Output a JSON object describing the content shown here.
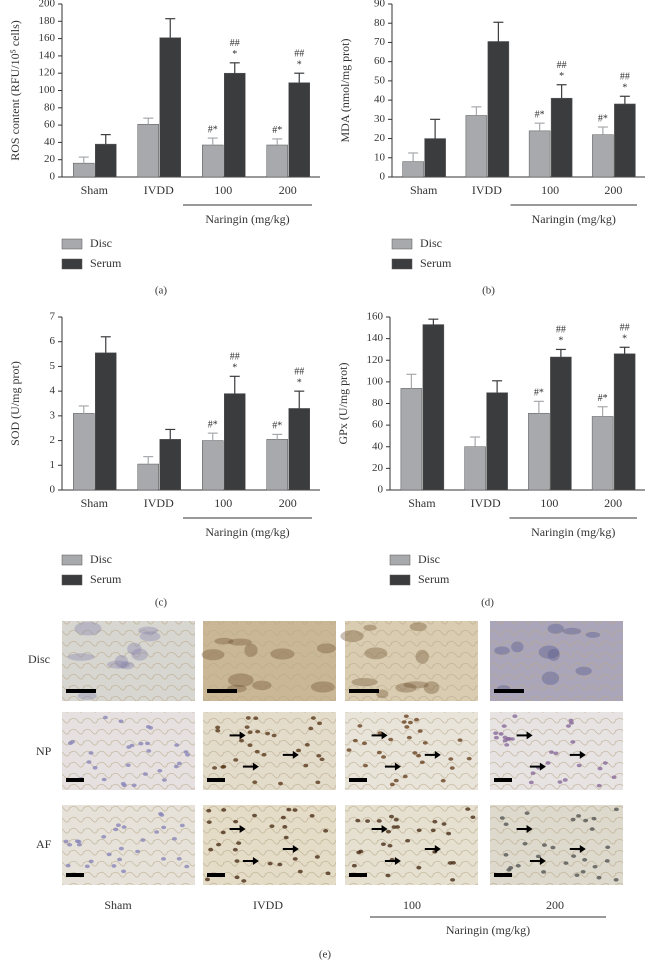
{
  "chart_data": [
    {
      "type": "bar",
      "panel_label": "(a)",
      "y_label": "ROS content (RFU/10⁵ cells)",
      "group_label": "Naringin (mg/kg)",
      "categories": [
        "Sham",
        "IVDD",
        "100",
        "200"
      ],
      "ylim": [
        0,
        200
      ],
      "yticks": [
        0,
        20,
        40,
        60,
        80,
        100,
        120,
        140,
        160,
        180,
        200
      ],
      "series": [
        {
          "name": "Disc",
          "color": "#a7a9ac",
          "values": [
            16,
            61,
            37,
            37
          ],
          "errors": [
            7,
            7,
            8,
            7
          ],
          "sig_labels": [
            null,
            null,
            [
              "#*"
            ],
            [
              "#*"
            ]
          ]
        },
        {
          "name": "Serum",
          "color": "#3b3c3e",
          "values": [
            38,
            161,
            120,
            109
          ],
          "errors": [
            11,
            22,
            12,
            11
          ],
          "sig_labels": [
            null,
            null,
            [
              "##",
              "*"
            ],
            [
              "##",
              "*"
            ]
          ]
        }
      ]
    },
    {
      "type": "bar",
      "panel_label": "(b)",
      "y_label": "MDA (nmol/mg prot)",
      "group_label": "Naringin (mg/kg)",
      "categories": [
        "Sham",
        "IVDD",
        "100",
        "200"
      ],
      "ylim": [
        0,
        90
      ],
      "yticks": [
        0,
        10,
        20,
        30,
        40,
        50,
        60,
        70,
        80,
        90
      ],
      "series": [
        {
          "name": "Disc",
          "color": "#a7a9ac",
          "values": [
            8,
            32,
            24,
            22
          ],
          "errors": [
            4.5,
            4.5,
            4,
            4
          ],
          "sig_labels": [
            null,
            null,
            [
              "#*"
            ],
            [
              "#*"
            ]
          ]
        },
        {
          "name": "Serum",
          "color": "#3b3c3e",
          "values": [
            20,
            70.5,
            41,
            38
          ],
          "errors": [
            10,
            10,
            7,
            4
          ],
          "sig_labels": [
            null,
            null,
            [
              "##",
              "*"
            ],
            [
              "##",
              "*"
            ]
          ]
        }
      ]
    },
    {
      "type": "bar",
      "panel_label": "(c)",
      "y_label": "SOD (U/mg prot)",
      "group_label": "Naringin (mg/kg)",
      "categories": [
        "Sham",
        "IVDD",
        "100",
        "200"
      ],
      "ylim": [
        0,
        7
      ],
      "yticks": [
        0,
        1,
        2,
        3,
        4,
        5,
        6,
        7
      ],
      "series": [
        {
          "name": "Disc",
          "color": "#a7a9ac",
          "values": [
            3.1,
            1.05,
            2.0,
            2.05
          ],
          "errors": [
            0.3,
            0.3,
            0.3,
            0.2
          ],
          "sig_labels": [
            null,
            null,
            [
              "#*"
            ],
            [
              "#*"
            ]
          ]
        },
        {
          "name": "Serum",
          "color": "#3b3c3e",
          "values": [
            5.55,
            2.05,
            3.9,
            3.3
          ],
          "errors": [
            0.65,
            0.4,
            0.7,
            0.7
          ],
          "sig_labels": [
            null,
            null,
            [
              "##",
              "*"
            ],
            [
              "##",
              "*"
            ]
          ]
        }
      ]
    },
    {
      "type": "bar",
      "panel_label": "(d)",
      "y_label": "GPx (U/mg prot)",
      "group_label": "Naringin (mg/kg)",
      "categories": [
        "Sham",
        "IVDD",
        "100",
        "200"
      ],
      "ylim": [
        0,
        160
      ],
      "yticks": [
        0,
        20,
        40,
        60,
        80,
        100,
        120,
        140,
        160
      ],
      "series": [
        {
          "name": "Disc",
          "color": "#a7a9ac",
          "values": [
            94,
            40,
            71,
            68
          ],
          "errors": [
            13,
            9,
            11,
            9
          ],
          "sig_labels": [
            null,
            null,
            [
              "#*"
            ],
            [
              "#*"
            ]
          ]
        },
        {
          "name": "Serum",
          "color": "#3b3c3e",
          "values": [
            153,
            90,
            123,
            126
          ],
          "errors": [
            5,
            11,
            7,
            6
          ],
          "sig_labels": [
            null,
            null,
            [
              "##",
              "*"
            ],
            [
              "##",
              "*"
            ]
          ]
        }
      ]
    }
  ],
  "panel_e": {
    "row_labels": [
      "Disc",
      "NP",
      "AF"
    ],
    "column_labels": [
      "Sham",
      "IVDD",
      "100",
      "200"
    ],
    "group_label": "Naringin (mg/kg)",
    "panel_label": "(e)"
  }
}
